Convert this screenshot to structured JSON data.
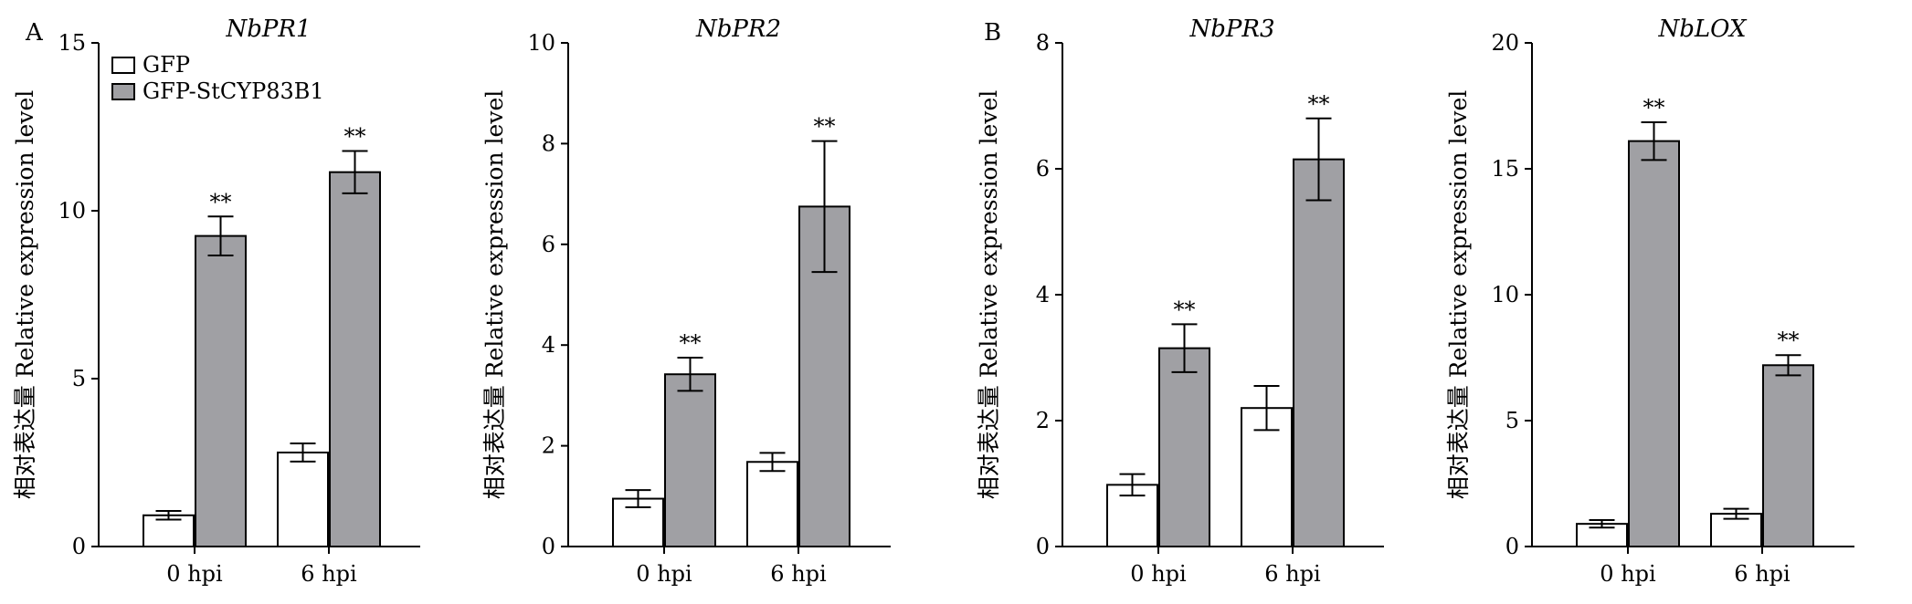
{
  "panel_labels": [
    "A",
    "B"
  ],
  "legend": {
    "items": [
      {
        "label": "GFP",
        "color": "#ffffff"
      },
      {
        "label": "GFP-StCYP83B1",
        "color": "#a0a0a4"
      }
    ]
  },
  "chart_data": [
    {
      "type": "bar",
      "title": "NbPR1",
      "ylabel": "相对表达量 Relative expression level",
      "xlabel": "",
      "categories": [
        "0 hpi",
        "6 hpi"
      ],
      "ylim": [
        0,
        15
      ],
      "yticks": [
        0,
        5,
        10,
        15
      ],
      "series": [
        {
          "name": "GFP",
          "values": [
            0.93,
            2.8
          ],
          "errors": [
            0.13,
            0.27
          ]
        },
        {
          "name": "GFP-StCYP83B1",
          "values": [
            9.25,
            11.15
          ],
          "errors": [
            0.58,
            0.63
          ]
        }
      ],
      "annotations": [
        "",
        "",
        "**",
        "**"
      ]
    },
    {
      "type": "bar",
      "title": "NbPR2",
      "ylabel": "相对表达量 Relative expression level",
      "xlabel": "",
      "categories": [
        "0 hpi",
        "6 hpi"
      ],
      "ylim": [
        0,
        10
      ],
      "yticks": [
        0,
        2,
        4,
        6,
        8,
        10
      ],
      "series": [
        {
          "name": "GFP",
          "values": [
            0.95,
            1.68
          ],
          "errors": [
            0.17,
            0.18
          ]
        },
        {
          "name": "GFP-StCYP83B1",
          "values": [
            3.42,
            6.75
          ],
          "errors": [
            0.33,
            1.3
          ]
        }
      ],
      "annotations": [
        "",
        "",
        "**",
        "**"
      ]
    },
    {
      "type": "bar",
      "title": "NbPR3",
      "ylabel": "相对表达量 Relative expression level",
      "xlabel": "",
      "categories": [
        "0 hpi",
        "6 hpi"
      ],
      "ylim": [
        0,
        8
      ],
      "yticks": [
        0,
        2,
        4,
        6,
        8
      ],
      "series": [
        {
          "name": "GFP",
          "values": [
            0.98,
            2.2
          ],
          "errors": [
            0.17,
            0.35
          ]
        },
        {
          "name": "GFP-StCYP83B1",
          "values": [
            3.15,
            6.15
          ],
          "errors": [
            0.38,
            0.65
          ]
        }
      ],
      "annotations": [
        "",
        "",
        "**",
        "**"
      ]
    },
    {
      "type": "bar",
      "title": "NbLOX",
      "ylabel": "相对表达量 Relative expression level",
      "xlabel": "",
      "categories": [
        "0 hpi",
        "6 hpi"
      ],
      "ylim": [
        0,
        20
      ],
      "yticks": [
        0,
        5,
        10,
        15,
        20
      ],
      "series": [
        {
          "name": "GFP",
          "values": [
            0.9,
            1.3
          ],
          "errors": [
            0.15,
            0.2
          ]
        },
        {
          "name": "GFP-StCYP83B1",
          "values": [
            16.1,
            7.2
          ],
          "errors": [
            0.75,
            0.4
          ]
        }
      ],
      "annotations": [
        "",
        "",
        "**",
        "**"
      ]
    }
  ]
}
